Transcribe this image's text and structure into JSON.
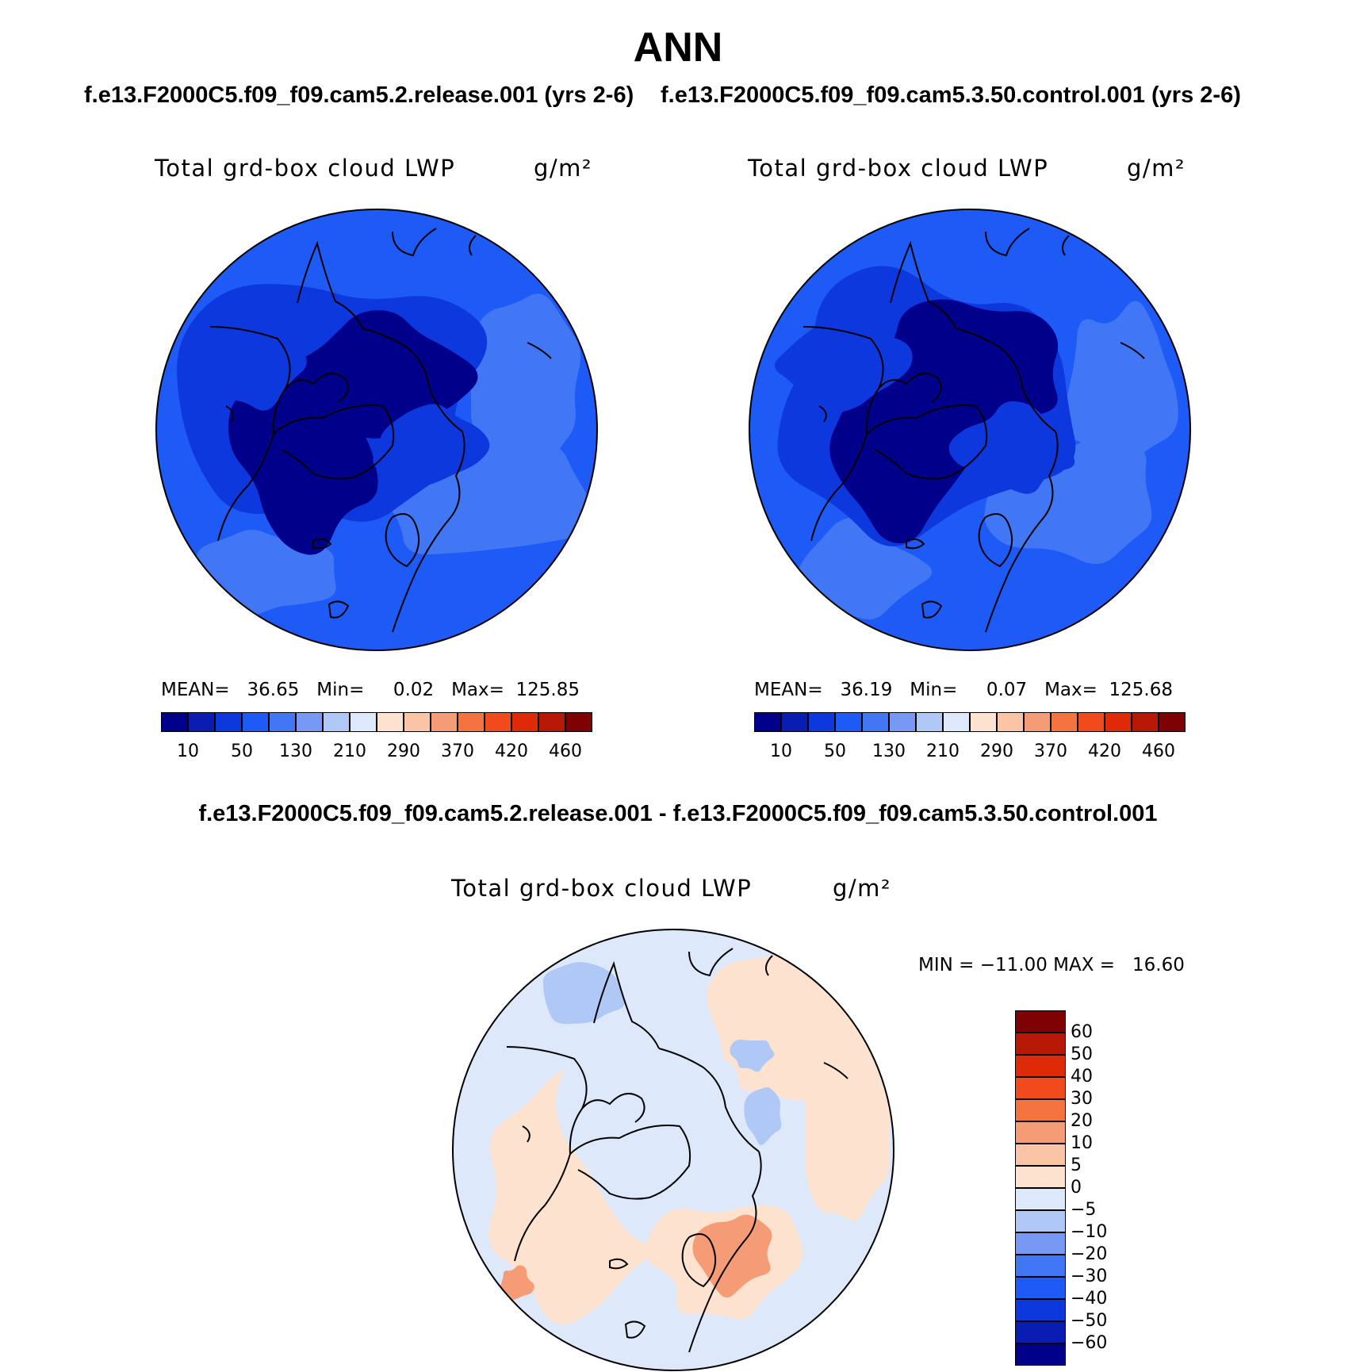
{
  "title": "ANN",
  "case1_label": "f.e13.F2000C5.f09_f09.cam5.2.release.001 (yrs 2-6)",
  "case2_label": "f.e13.F2000C5.f09_f09.cam5.3.50.control.001 (yrs 2-6)",
  "diff_label": "f.e13.F2000C5.f09_f09.cam5.2.release.001 - f.e13.F2000C5.f09_f09.cam5.3.50.control.001",
  "colors": {
    "abs_scale": [
      "#00008b",
      "#0a1db3",
      "#0c38dd",
      "#1e5af5",
      "#4177f5",
      "#7799f5",
      "#b0c8f5",
      "#dde9fa",
      "#fde3cf",
      "#fbc5a5",
      "#f59c76",
      "#f4733f",
      "#f14a1c",
      "#de2a07",
      "#b61805",
      "#7e0103"
    ],
    "diff_scale": [
      "#00008b",
      "#0a1db3",
      "#0c38dd",
      "#1e5af5",
      "#4177f5",
      "#7799f5",
      "#b0c8f5",
      "#dde9fa",
      "#fde3cf",
      "#fbc5a5",
      "#f59c76",
      "#f4733f",
      "#f14a1c",
      "#de2a07",
      "#b61805",
      "#7e0103"
    ]
  },
  "chart_data": [
    {
      "type": "heatmap",
      "projection": "north-polar-stereographic",
      "title": "Total grd-box cloud LWP",
      "units": "g/m²",
      "case": "f.e13.F2000C5.f09_f09.cam5.2.release.001 (yrs 2-6)",
      "stats": {
        "mean": "36.65",
        "min": "0.02",
        "max": "125.85"
      },
      "stats_text": "MEAN=   36.65   Min=     0.02   Max=  125.85",
      "colorbar_ticks": [
        "10",
        "50",
        "130",
        "210",
        "290",
        "370",
        "420",
        "460"
      ],
      "dominant_levels": [
        "<10",
        "10-50",
        "50-130"
      ]
    },
    {
      "type": "heatmap",
      "projection": "north-polar-stereographic",
      "title": "Total grd-box cloud LWP",
      "units": "g/m²",
      "case": "f.e13.F2000C5.f09_f09.cam5.3.50.control.001 (yrs 2-6)",
      "stats": {
        "mean": "36.19",
        "min": "0.07",
        "max": "125.68"
      },
      "stats_text": "MEAN=   36.19   Min=     0.07   Max=  125.68",
      "colorbar_ticks": [
        "10",
        "50",
        "130",
        "210",
        "290",
        "370",
        "420",
        "460"
      ],
      "dominant_levels": [
        "<10",
        "10-50",
        "50-130"
      ]
    },
    {
      "type": "heatmap",
      "projection": "north-polar-stereographic",
      "title": "Total grd-box cloud LWP",
      "units": "g/m²",
      "case": "difference",
      "stats": {
        "min": "-11.00",
        "max": "16.60"
      },
      "stats_text": "MIN = −11.00 MAX =   16.60",
      "colorbar_ticks": [
        "60",
        "50",
        "40",
        "30",
        "20",
        "10",
        "5",
        "0",
        "−5",
        "−10",
        "−20",
        "−30",
        "−40",
        "−50",
        "−60"
      ],
      "dominant_levels": [
        "-5-0",
        "0-5",
        "10-20"
      ]
    }
  ]
}
